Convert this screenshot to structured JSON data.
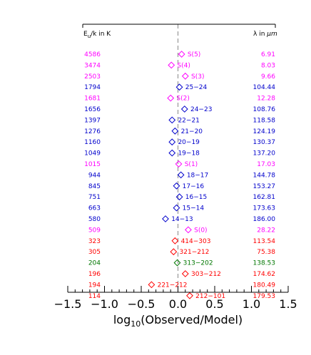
{
  "chart_data": {
    "type": "scatter",
    "xlabel": "log10(Observed/Model)",
    "xlabel_main": "log",
    "xlabel_sub": "10",
    "xlabel_rest": "(Observed/Model)",
    "xlim": [
      -1.5,
      1.5
    ],
    "xticks": [
      "−1.5",
      "−1.0",
      "−0.5",
      "0.0",
      "0.5",
      "1.0",
      "1.5"
    ],
    "xtick_values": [
      -1.5,
      -1.0,
      -0.5,
      0.0,
      0.5,
      1.0,
      1.5
    ],
    "reference_line_x": 0.0,
    "headers": {
      "left": "E",
      "left_sub": "u",
      "left_rest": "/k in K",
      "right": "λ in ",
      "right_unit": "μm"
    },
    "colors": {
      "magenta": "#ff00ff",
      "blue": "#0000cc",
      "red": "#ff0000",
      "green": "#007700"
    },
    "points": [
      {
        "energy": "4586",
        "label": "S(5)",
        "wavelength": "6.91",
        "x": 0.05,
        "color": "magenta"
      },
      {
        "energy": "3474",
        "label": "S(4)",
        "wavelength": "8.03",
        "x": -0.09,
        "color": "magenta"
      },
      {
        "energy": "2503",
        "label": "S(3)",
        "wavelength": "9.66",
        "x": 0.1,
        "color": "magenta"
      },
      {
        "energy": "1794",
        "label": "25−24",
        "wavelength": "104.44",
        "x": 0.02,
        "color": "blue"
      },
      {
        "energy": "1681",
        "label": "S(2)",
        "wavelength": "12.28",
        "x": -0.1,
        "color": "magenta"
      },
      {
        "energy": "1656",
        "label": "24−23",
        "wavelength": "108.76",
        "x": 0.09,
        "color": "blue"
      },
      {
        "energy": "1397",
        "label": "22−21",
        "wavelength": "118.58",
        "x": -0.08,
        "color": "blue"
      },
      {
        "energy": "1276",
        "label": "21−20",
        "wavelength": "124.19",
        "x": -0.04,
        "color": "blue"
      },
      {
        "energy": "1160",
        "label": "20−19",
        "wavelength": "130.37",
        "x": -0.08,
        "color": "blue"
      },
      {
        "energy": "1049",
        "label": "19−18",
        "wavelength": "137.20",
        "x": -0.08,
        "color": "blue"
      },
      {
        "energy": "1015",
        "label": "S(1)",
        "wavelength": "17.03",
        "x": 0.01,
        "color": "magenta"
      },
      {
        "energy": "944",
        "label": "18−17",
        "wavelength": "144.78",
        "x": 0.04,
        "color": "blue"
      },
      {
        "energy": "845",
        "label": "17−16",
        "wavelength": "153.27",
        "x": -0.02,
        "color": "blue"
      },
      {
        "energy": "751",
        "label": "16−15",
        "wavelength": "162.81",
        "x": 0.02,
        "color": "blue"
      },
      {
        "energy": "663",
        "label": "15−14",
        "wavelength": "173.63",
        "x": -0.02,
        "color": "blue"
      },
      {
        "energy": "580",
        "label": "14−13",
        "wavelength": "186.00",
        "x": -0.17,
        "color": "blue"
      },
      {
        "energy": "509",
        "label": "S(0)",
        "wavelength": "28.22",
        "x": 0.14,
        "color": "magenta"
      },
      {
        "energy": "323",
        "label": "414−303",
        "wavelength": "113.54",
        "x": -0.04,
        "color": "red"
      },
      {
        "energy": "305",
        "label": "321−212",
        "wavelength": "75.38",
        "x": -0.06,
        "color": "red"
      },
      {
        "energy": "204",
        "label": "313−202",
        "wavelength": "138.53",
        "x": -0.01,
        "color": "green"
      },
      {
        "energy": "196",
        "label": "303−212",
        "wavelength": "174.62",
        "x": 0.1,
        "color": "red"
      },
      {
        "energy": "194",
        "label": "221−212",
        "wavelength": "180.49",
        "x": -0.36,
        "color": "red"
      },
      {
        "energy": "114",
        "label": "212−101",
        "wavelength": "179.53",
        "x": 0.16,
        "color": "red"
      }
    ]
  }
}
